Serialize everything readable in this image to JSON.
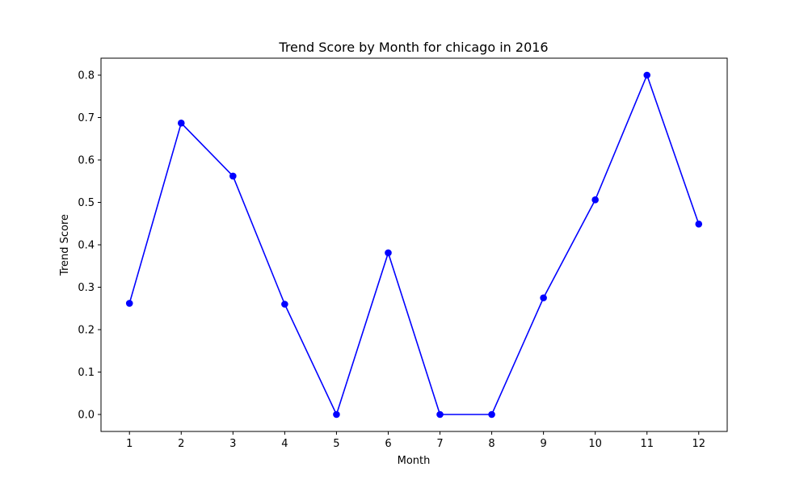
{
  "chart_data": {
    "type": "line",
    "title": "Trend Score by Month for chicago in 2016",
    "xlabel": "Month",
    "ylabel": "Trend Score",
    "x": [
      1,
      2,
      3,
      4,
      5,
      6,
      7,
      8,
      9,
      10,
      11,
      12
    ],
    "x_ticks": [
      "1",
      "2",
      "3",
      "4",
      "5",
      "6",
      "7",
      "8",
      "9",
      "10",
      "11",
      "12"
    ],
    "y_ticks": [
      "0.0",
      "0.1",
      "0.2",
      "0.3",
      "0.4",
      "0.5",
      "0.6",
      "0.7",
      "0.8"
    ],
    "xlim": [
      0.45,
      12.55
    ],
    "ylim": [
      -0.04,
      0.84
    ],
    "grid": false,
    "legend": false,
    "series": [
      {
        "values": [
          0.262,
          0.687,
          0.562,
          0.26,
          0.0,
          0.381,
          0.0,
          0.0,
          0.275,
          0.506,
          0.8,
          0.449
        ],
        "color": "#0000ff",
        "marker": "circle"
      }
    ]
  }
}
